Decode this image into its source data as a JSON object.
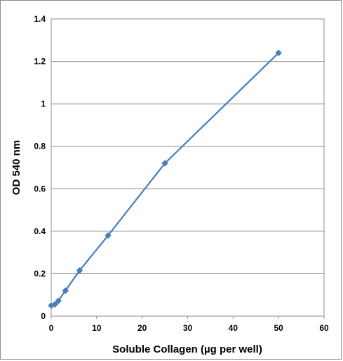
{
  "chart_data": {
    "type": "scatter",
    "title": "",
    "xlabel": "Soluble Collagen (µg per well)",
    "ylabel": "OD 540 nm",
    "xlim": [
      0,
      60
    ],
    "ylim": [
      0,
      1.4
    ],
    "x_ticks": [
      "0",
      "10",
      "20",
      "30",
      "40",
      "50",
      "60"
    ],
    "y_ticks": [
      "0",
      "0.2",
      "0.4",
      "0.6",
      "0.8",
      "1",
      "1.2",
      "1.4"
    ],
    "grid": "horizontal",
    "legend": "none",
    "marker": "diamond",
    "connected_with_lines": true,
    "series": [
      {
        "color": "#4a7ebb",
        "points": [
          {
            "x": 0,
            "y": 0.05
          },
          {
            "x": 0.78,
            "y": 0.055
          },
          {
            "x": 1.56,
            "y": 0.072
          },
          {
            "x": 3.125,
            "y": 0.12
          },
          {
            "x": 6.25,
            "y": 0.215
          },
          {
            "x": 12.5,
            "y": 0.38
          },
          {
            "x": 25,
            "y": 0.72
          },
          {
            "x": 50,
            "y": 1.24
          }
        ]
      }
    ]
  }
}
